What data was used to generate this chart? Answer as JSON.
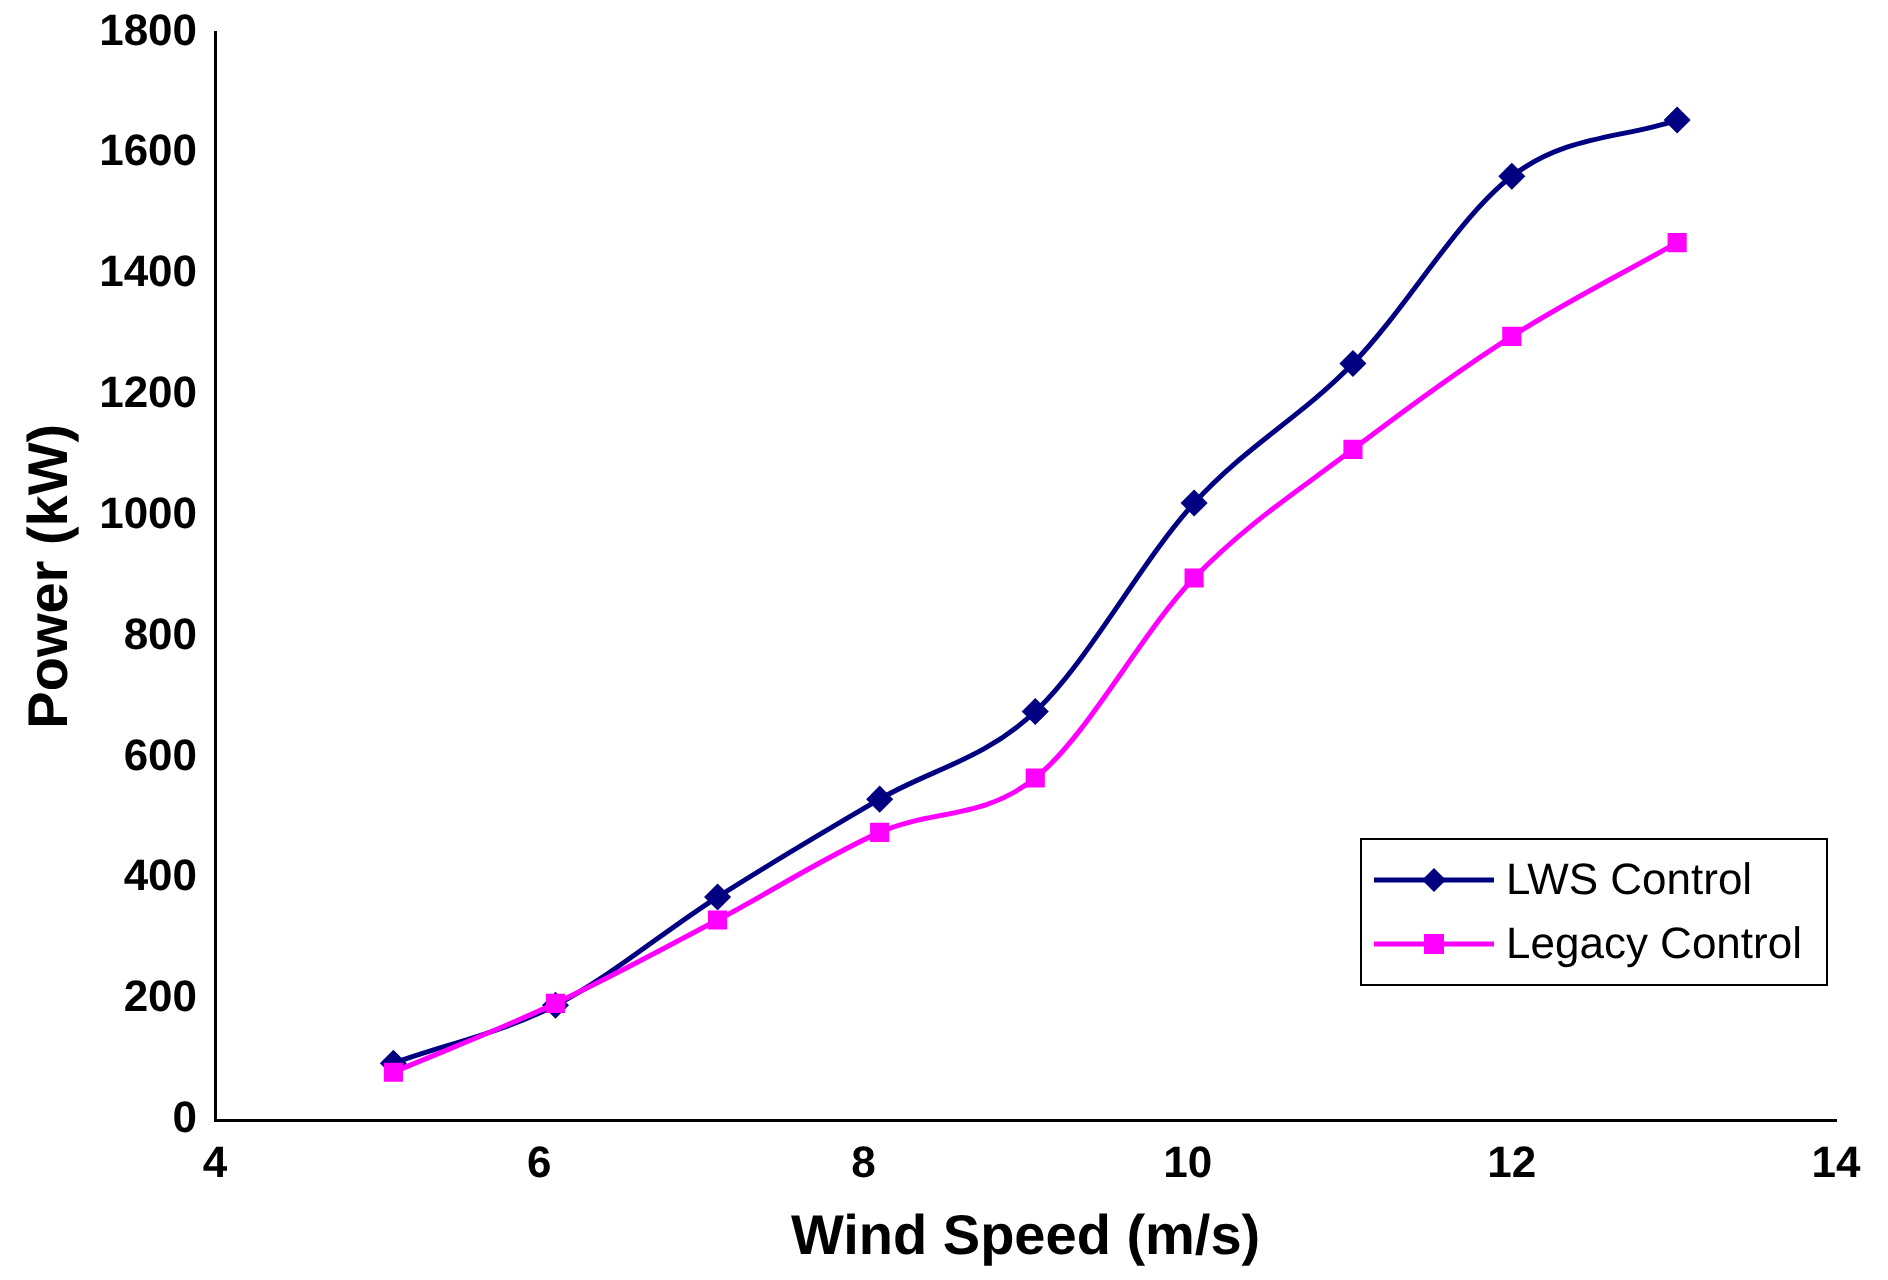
{
  "chart_data": {
    "type": "line",
    "xlabel": "Wind Speed (m/s)",
    "ylabel": "Power (kW)",
    "xlim": [
      4,
      14
    ],
    "xticks": [
      4,
      6,
      8,
      10,
      12,
      14
    ],
    "ylim": [
      0,
      1800
    ],
    "yticks": [
      0,
      200,
      400,
      600,
      800,
      1000,
      1200,
      1400,
      1600,
      1800
    ],
    "grid": false,
    "legend": "bottom right",
    "series": [
      {
        "name": "LWS Control",
        "color": "#000080",
        "marker": "diamond",
        "x": [
          5.1,
          6.1,
          7.1,
          8.1,
          9.06,
          10.04,
          11.02,
          12.0,
          13.02
        ],
        "values": [
          94,
          190,
          369,
          531,
          676,
          1021,
          1252,
          1562,
          1655
        ]
      },
      {
        "name": "Legacy Control",
        "color": "#ff00ff",
        "marker": "square",
        "x": [
          5.1,
          6.1,
          7.1,
          8.1,
          9.06,
          10.04,
          11.02,
          12.0,
          13.02
        ],
        "values": [
          79,
          193,
          331,
          476,
          566,
          897,
          1110,
          1297,
          1452
        ]
      }
    ]
  }
}
